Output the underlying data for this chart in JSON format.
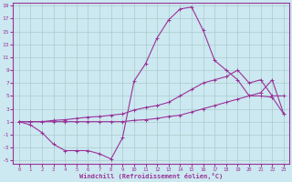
{
  "xlabel": "Windchill (Refroidissement éolien,°C)",
  "bg_color": "#cce8f0",
  "grid_color": "#aacccc",
  "line_color": "#993399",
  "xlim": [
    -0.5,
    23.5
  ],
  "ylim": [
    -5.5,
    19.5
  ],
  "xticks": [
    0,
    1,
    2,
    3,
    4,
    5,
    6,
    7,
    8,
    9,
    10,
    11,
    12,
    13,
    14,
    15,
    16,
    17,
    18,
    19,
    20,
    21,
    22,
    23
  ],
  "yticks": [
    -5,
    -3,
    -1,
    1,
    3,
    5,
    7,
    9,
    11,
    13,
    15,
    17,
    19
  ],
  "line1_x": [
    0,
    1,
    2,
    3,
    4,
    5,
    6,
    7,
    8,
    9,
    10,
    11,
    12,
    13,
    14,
    15,
    16,
    17,
    18,
    19,
    20,
    21,
    22,
    23
  ],
  "line1_y": [
    1.0,
    0.5,
    -0.7,
    -2.5,
    -3.5,
    -3.5,
    -3.5,
    -4.0,
    -4.8,
    -1.5,
    7.3,
    10.0,
    14.0,
    16.8,
    18.5,
    18.8,
    15.2,
    10.5,
    9.0,
    7.5,
    5.0,
    5.0,
    4.8,
    2.2
  ],
  "line2_x": [
    0,
    1,
    2,
    3,
    4,
    5,
    6,
    7,
    8,
    9,
    10,
    11,
    12,
    13,
    14,
    15,
    16,
    17,
    18,
    19,
    20,
    21,
    22,
    23
  ],
  "line2_y": [
    1.0,
    1.0,
    1.0,
    1.2,
    1.3,
    1.5,
    1.7,
    1.8,
    2.0,
    2.2,
    2.8,
    3.2,
    3.5,
    4.0,
    5.0,
    6.0,
    7.0,
    7.5,
    8.0,
    9.0,
    7.0,
    7.5,
    5.0,
    5.0
  ],
  "line3_x": [
    0,
    1,
    2,
    3,
    4,
    5,
    6,
    7,
    8,
    9,
    10,
    11,
    12,
    13,
    14,
    15,
    16,
    17,
    18,
    19,
    20,
    21,
    22,
    23
  ],
  "line3_y": [
    1.0,
    1.0,
    1.0,
    1.0,
    1.0,
    1.0,
    1.0,
    1.0,
    1.0,
    1.0,
    1.2,
    1.3,
    1.5,
    1.8,
    2.0,
    2.5,
    3.0,
    3.5,
    4.0,
    4.5,
    5.0,
    5.5,
    7.5,
    2.2
  ]
}
